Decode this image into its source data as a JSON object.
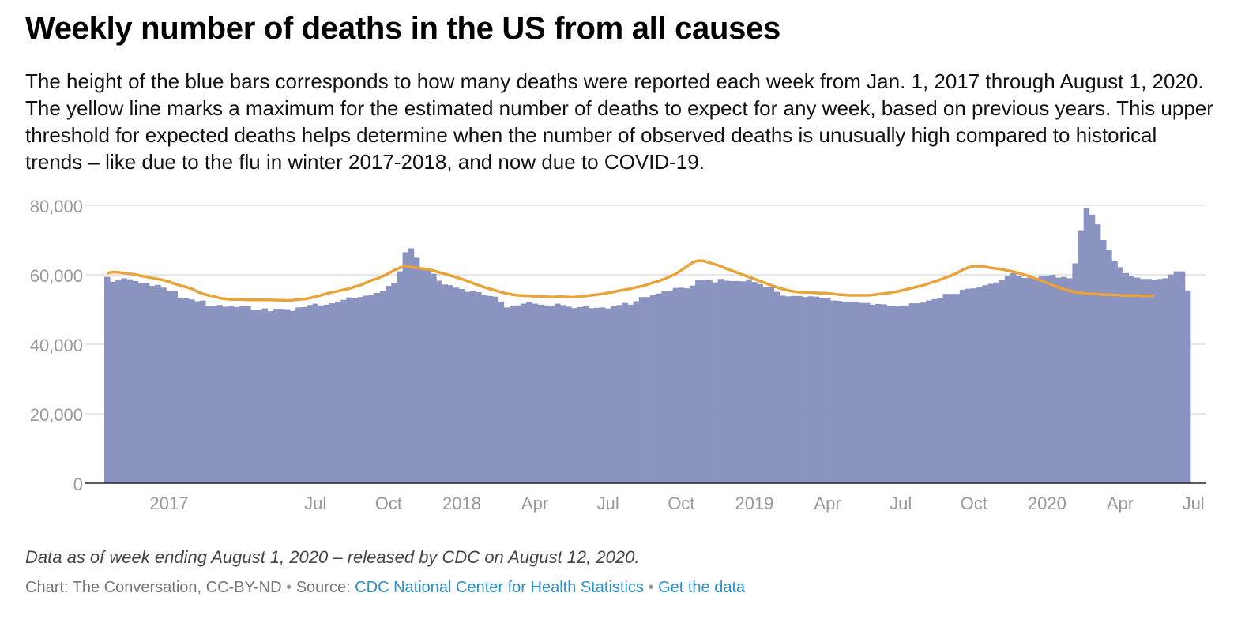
{
  "header": {
    "title": "Weekly number of deaths in the US from all causes",
    "subtitle": "The height of the blue bars corresponds to how many deaths were reported each week from Jan. 1, 2017 through August 1, 2020. The yellow line marks a maximum for the estimated number of deaths to expect for any week, based on previous years. This upper threshold for expected deaths helps determine when the number of observed deaths is unusually high compared to historical trends – like due to the flu in winter 2017-2018, and now due to COVID-19."
  },
  "footer": {
    "note": "Data as of week ending August 1, 2020 – released by CDC on August 12, 2020.",
    "credit_prefix": "Chart: The Conversation, CC-BY-ND",
    "separator": "•",
    "source_label": "Source:",
    "source_link": "CDC National Center for Health Statistics",
    "data_link": "Get the data"
  },
  "colors": {
    "bars": "#8b93c1",
    "threshold_line": "#e8a33b",
    "grid": "#e0e0e0",
    "axis_text": "#999999",
    "link": "#2c8fc6"
  },
  "chart_data": {
    "type": "bar",
    "ylim": [
      0,
      80000
    ],
    "yticks": [
      0,
      20000,
      40000,
      60000,
      80000
    ],
    "ytick_labels": [
      "0",
      "20,000",
      "40,000",
      "60,000",
      "80,000"
    ],
    "xticks": [
      {
        "week": 0,
        "label": "2017"
      },
      {
        "week": 26,
        "label": "Jul"
      },
      {
        "week": 39,
        "label": "Oct"
      },
      {
        "week": 52,
        "label": "2018"
      },
      {
        "week": 65,
        "label": "Apr"
      },
      {
        "week": 78,
        "label": "Jul"
      },
      {
        "week": 91,
        "label": "Oct"
      },
      {
        "week": 104,
        "label": "2019"
      },
      {
        "week": 117,
        "label": "Apr"
      },
      {
        "week": 130,
        "label": "Jul"
      },
      {
        "week": 143,
        "label": "Oct"
      },
      {
        "week": 156,
        "label": "2020"
      },
      {
        "week": 169,
        "label": "Apr"
      },
      {
        "week": 182,
        "label": "Jul"
      }
    ],
    "series": [
      {
        "values": [
          59400,
          58000,
          58400,
          59000,
          58700,
          58200,
          57500,
          57600,
          56800,
          57100,
          56300,
          55300,
          55300,
          53200,
          53400,
          52900,
          52400,
          52600,
          51000,
          51100,
          51300,
          50800,
          51100,
          50700,
          51000,
          50900,
          50000,
          49800,
          50300,
          49500,
          50200,
          50200,
          50100,
          49600,
          50600,
          50700,
          51300,
          51700,
          51200,
          51400,
          51800,
          52300,
          52800,
          53500,
          53200,
          53600,
          54000,
          54300,
          54800,
          55400,
          56800,
          57700,
          61000,
          66500,
          67600,
          64900,
          62000,
          61300,
          60300,
          58300,
          57200,
          57000,
          56300,
          55900,
          55100,
          55300,
          55000,
          54100,
          53900,
          53700,
          52300,
          50600,
          51000,
          51200,
          51700,
          52200,
          51700,
          51400,
          51200,
          51000,
          51700,
          51300,
          50800,
          50400,
          50700,
          51000,
          50400,
          50500,
          50600,
          50300,
          51100,
          51300,
          51900,
          51400,
          52400,
          53600,
          53600,
          54300,
          54600,
          55200,
          55300,
          56200,
          56300,
          56100,
          56900,
          58600,
          58600,
          58400,
          57800,
          58800,
          58300,
          58200,
          58200,
          58100,
          58700,
          57900,
          57300,
          56400,
          56500,
          55100,
          54000,
          53800,
          53900,
          53900,
          53600,
          53800,
          53700,
          53200,
          53200,
          52600,
          52500,
          52300,
          52300,
          52100,
          51900,
          51900,
          51400,
          51600,
          51500,
          51100,
          50900,
          51100,
          51200,
          51800,
          51800,
          52000,
          52600,
          53000,
          53400,
          54500,
          54500,
          54500,
          55700,
          56000,
          56100,
          56500,
          57000,
          57400,
          57800,
          58400,
          59700,
          60500,
          59700,
          59100,
          59200,
          59100,
          59700,
          59800,
          60000,
          59200,
          59400,
          59000,
          63300,
          72800,
          79200,
          77300,
          74500,
          70000,
          67200,
          64000,
          62200,
          60500,
          59700,
          59200,
          58800,
          58800,
          58600,
          58800,
          59000,
          60100,
          61000,
          61000,
          55500
        ],
        "color": "#8b93c1"
      },
      {
        "values": [
          60500,
          60800,
          60700,
          60500,
          60300,
          60100,
          59700,
          59400,
          59100,
          58800,
          58500,
          58000,
          57400,
          56900,
          56500,
          56000,
          55200,
          54500,
          54100,
          53800,
          53300,
          53100,
          52900,
          52900,
          52900,
          52800,
          52800,
          52800,
          52800,
          52800,
          52700,
          52700,
          52600,
          52700,
          52900,
          53000,
          53300,
          53700,
          54100,
          54600,
          55000,
          55300,
          55700,
          56000,
          56600,
          57000,
          57700,
          58400,
          58900,
          59600,
          60400,
          61300,
          62000,
          62500,
          62300,
          62000,
          61800,
          61600,
          61200,
          60700,
          60300,
          59800,
          59300,
          58800,
          58200,
          57600,
          57000,
          56400,
          55900,
          55500,
          55000,
          54600,
          54300,
          54100,
          54000,
          53900,
          53800,
          53700,
          53700,
          53600,
          53700,
          53700,
          53600,
          53600,
          53700,
          53900,
          54100,
          54300,
          54500,
          54800,
          55100,
          55400,
          55700,
          56000,
          56400,
          56700,
          57200,
          57700,
          58200,
          58800,
          59500,
          60200,
          61300,
          62400,
          63500,
          64100,
          64000,
          63500,
          63000,
          62500,
          61800,
          61200,
          60600,
          60000,
          59400,
          58800,
          58200,
          57600,
          57000,
          56400,
          55900,
          55500,
          55200,
          55000,
          54900,
          54900,
          54800,
          54700,
          54700,
          54500,
          54300,
          54200,
          54100,
          54100,
          54100,
          54100,
          54200,
          54400,
          54600,
          54800,
          55100,
          55400,
          55800,
          56200,
          56600,
          57000,
          57500,
          58000,
          58600,
          59200,
          59800,
          60500,
          61400,
          62100,
          62500,
          62500,
          62300,
          62000,
          61800,
          61600,
          61200,
          60900,
          60500,
          60000,
          59500,
          58900,
          58300,
          57700,
          57000,
          56400,
          55800,
          55400,
          55000,
          54800,
          54600,
          54500,
          54400,
          54300,
          54300,
          54200,
          54100,
          54000,
          54000,
          54000,
          53900,
          53900,
          53900
        ],
        "color": "#e8a33b",
        "style": "line"
      }
    ]
  }
}
